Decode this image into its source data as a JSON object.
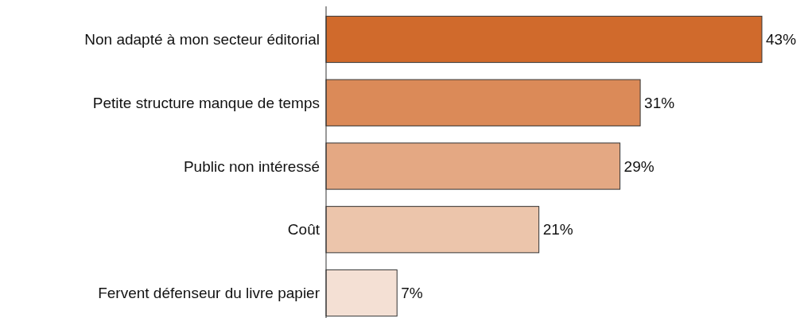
{
  "chart_data": {
    "type": "bar",
    "orientation": "horizontal",
    "categories": [
      "Non adapté à mon secteur éditorial",
      "Petite structure manque de temps",
      "Public non intéressé",
      "Coût",
      "Fervent défenseur du livre papier"
    ],
    "values": [
      43,
      31,
      29,
      21,
      7
    ],
    "colors": [
      "#d06a2c",
      "#db8a58",
      "#e4a883",
      "#ecc5ab",
      "#f4e0d4"
    ],
    "value_labels": [
      "43%",
      "31%",
      "29%",
      "21%",
      "7%"
    ]
  }
}
